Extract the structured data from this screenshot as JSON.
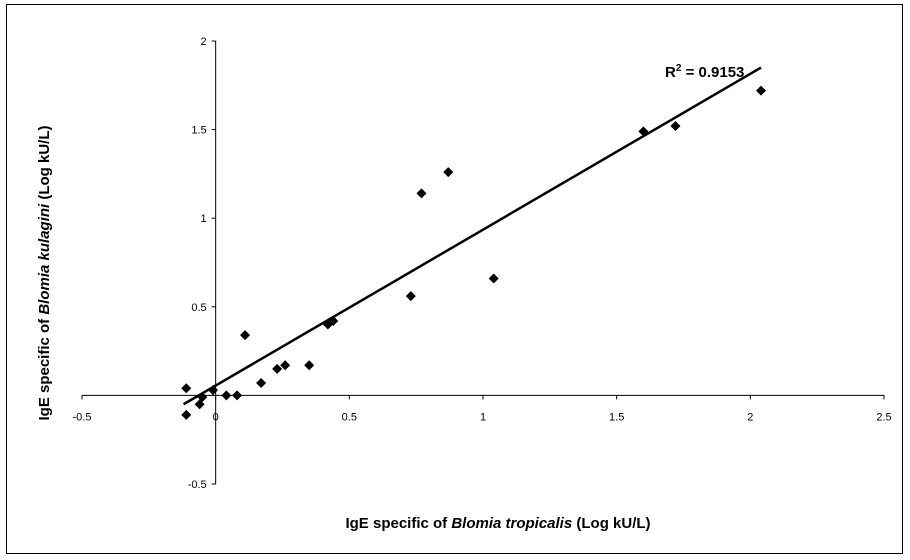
{
  "chart_data": {
    "type": "scatter",
    "xlim": [
      -0.5,
      2.5
    ],
    "ylim": [
      -0.5,
      2
    ],
    "x_ticks": [
      -0.5,
      0,
      0.5,
      1,
      1.5,
      2,
      2.5
    ],
    "y_ticks": [
      -0.5,
      0.5,
      1,
      1.5,
      2
    ],
    "origin_label": "0",
    "xlabel": {
      "prefix": "IgE specific of ",
      "italic": "Blomia tropicalis",
      "suffix": "  (Log kU/L)"
    },
    "ylabel": {
      "prefix": "IgE specific of ",
      "italic": "Blomia kulagini",
      "suffix": "   (Log kU/L)"
    },
    "annotation": {
      "base": "R",
      "sup": "2",
      "rest": " = 0.9153"
    },
    "trendline": {
      "x": [
        -0.12,
        2.04
      ],
      "y": [
        -0.05,
        1.85
      ]
    },
    "points": [
      {
        "x": -0.11,
        "y": 0.04
      },
      {
        "x": -0.11,
        "y": -0.11
      },
      {
        "x": -0.06,
        "y": -0.05
      },
      {
        "x": -0.05,
        "y": -0.01
      },
      {
        "x": -0.01,
        "y": 0.03
      },
      {
        "x": 0.04,
        "y": 0.0
      },
      {
        "x": 0.08,
        "y": 0.0
      },
      {
        "x": 0.11,
        "y": 0.34
      },
      {
        "x": 0.17,
        "y": 0.07
      },
      {
        "x": 0.23,
        "y": 0.15
      },
      {
        "x": 0.26,
        "y": 0.17
      },
      {
        "x": 0.35,
        "y": 0.17
      },
      {
        "x": 0.42,
        "y": 0.4
      },
      {
        "x": 0.44,
        "y": 0.42
      },
      {
        "x": 0.73,
        "y": 0.56
      },
      {
        "x": 0.77,
        "y": 1.14
      },
      {
        "x": 0.87,
        "y": 1.26
      },
      {
        "x": 1.04,
        "y": 0.66
      },
      {
        "x": 1.6,
        "y": 1.49
      },
      {
        "x": 1.72,
        "y": 1.52
      },
      {
        "x": 2.04,
        "y": 1.72
      }
    ],
    "grid": false,
    "legend": "none",
    "marker_color": "#000000"
  }
}
